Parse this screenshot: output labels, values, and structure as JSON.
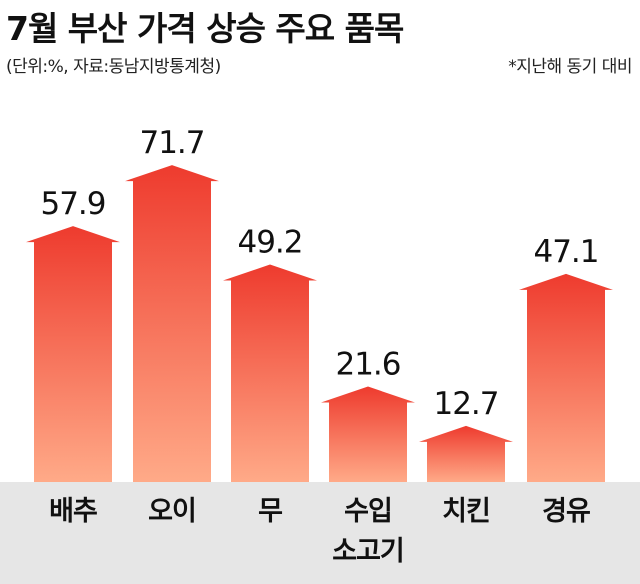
{
  "title": "7월 부산 가격 상승 주요 품목",
  "subtitle": "(단위:%, 자료:동남지방통계청)",
  "note": "*지난해 동기 대비",
  "colors": {
    "bar_top": "#ee3b2e",
    "bar_bottom": "#ffaa88",
    "baseband": "#e6e6e6"
  },
  "chart_data": {
    "type": "bar",
    "categories": [
      "배추",
      "오이",
      "무",
      "수입\n소고기",
      "치킨",
      "경유"
    ],
    "values": [
      57.9,
      71.7,
      49.2,
      21.6,
      12.7,
      47.1
    ],
    "data_labels": [
      "57.9",
      "71.7",
      "49.2",
      "21.6",
      "12.7",
      "47.1"
    ],
    "title": "7월 부산 가격 상승 주요 품목",
    "ylabel": "",
    "xlabel": ""
  }
}
